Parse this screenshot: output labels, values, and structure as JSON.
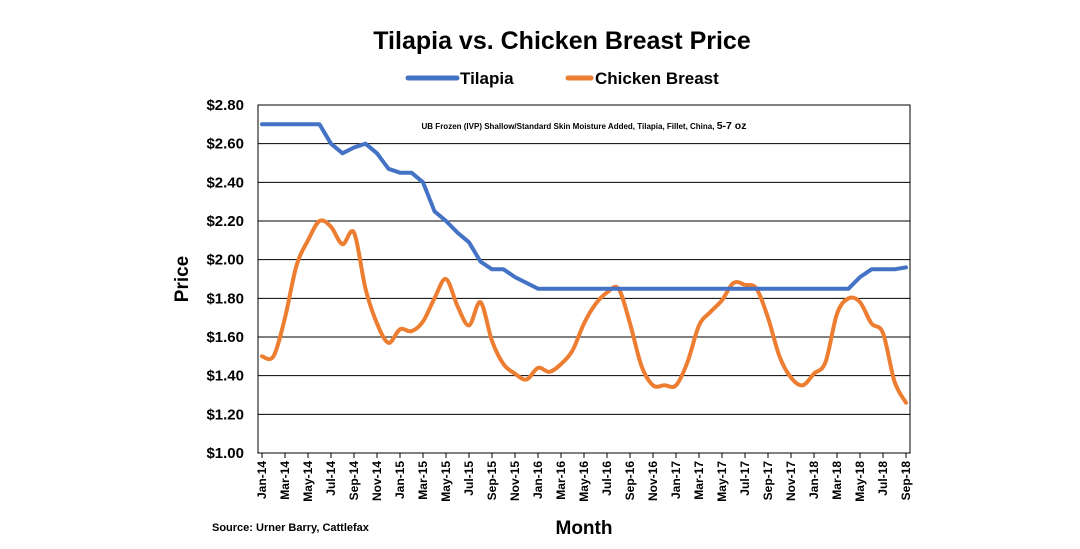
{
  "chart_data": {
    "type": "line",
    "title": "Tilapia vs. Chicken Breast Price",
    "xlabel": "Month",
    "ylabel": "Price",
    "ylim": [
      1.0,
      2.8
    ],
    "yticks": [
      "$1.00",
      "$1.20",
      "$1.40",
      "$1.60",
      "$1.80",
      "$2.00",
      "$2.20",
      "$2.40",
      "$2.60",
      "$2.80"
    ],
    "x_tick_labels": [
      "Jan-14",
      "Mar-14",
      "May-14",
      "Jul-14",
      "Sep-14",
      "Nov-14",
      "Jan-15",
      "Mar-15",
      "May-15",
      "Jul-15",
      "Sep-15",
      "Nov-15",
      "Jan-16",
      "Mar-16",
      "May-16",
      "Jul-16",
      "Sep-16",
      "Nov-16",
      "Jan-17",
      "Mar-17",
      "May-17",
      "Jul-17",
      "Sep-17",
      "Nov-17",
      "Jan-18",
      "Mar-18",
      "May-18",
      "Jul-18",
      "Sep-18"
    ],
    "x": [
      "Jan-14",
      "Feb-14",
      "Mar-14",
      "Apr-14",
      "May-14",
      "Jun-14",
      "Jul-14",
      "Aug-14",
      "Sep-14",
      "Oct-14",
      "Nov-14",
      "Dec-14",
      "Jan-15",
      "Feb-15",
      "Mar-15",
      "Apr-15",
      "May-15",
      "Jun-15",
      "Jul-15",
      "Aug-15",
      "Sep-15",
      "Oct-15",
      "Nov-15",
      "Dec-15",
      "Jan-16",
      "Feb-16",
      "Mar-16",
      "Apr-16",
      "May-16",
      "Jun-16",
      "Jul-16",
      "Aug-16",
      "Sep-16",
      "Oct-16",
      "Nov-16",
      "Dec-16",
      "Jan-17",
      "Feb-17",
      "Mar-17",
      "Apr-17",
      "May-17",
      "Jun-17",
      "Jul-17",
      "Aug-17",
      "Sep-17",
      "Oct-17",
      "Nov-17",
      "Dec-17",
      "Jan-18",
      "Feb-18",
      "Mar-18",
      "Apr-18",
      "May-18",
      "Jun-18",
      "Jul-18",
      "Aug-18",
      "Sep-18"
    ],
    "series": [
      {
        "name": "Tilapia",
        "color": "#4472C4",
        "values": [
          2.7,
          2.7,
          2.7,
          2.7,
          2.7,
          2.7,
          2.6,
          2.55,
          2.58,
          2.6,
          2.55,
          2.47,
          2.45,
          2.45,
          2.4,
          2.25,
          2.2,
          2.14,
          2.09,
          1.99,
          1.95,
          1.95,
          1.91,
          1.88,
          1.85,
          1.85,
          1.85,
          1.85,
          1.85,
          1.85,
          1.85,
          1.85,
          1.85,
          1.85,
          1.85,
          1.85,
          1.85,
          1.85,
          1.85,
          1.85,
          1.85,
          1.85,
          1.85,
          1.85,
          1.85,
          1.85,
          1.85,
          1.85,
          1.85,
          1.85,
          1.85,
          1.85,
          1.91,
          1.95,
          1.95,
          1.95,
          1.96
        ]
      },
      {
        "name": "Chicken Breast",
        "color": "#ED7D31",
        "values": [
          1.5,
          1.5,
          1.7,
          1.97,
          2.1,
          2.2,
          2.17,
          2.08,
          2.14,
          1.85,
          1.67,
          1.57,
          1.64,
          1.63,
          1.68,
          1.8,
          1.9,
          1.76,
          1.66,
          1.78,
          1.58,
          1.46,
          1.41,
          1.38,
          1.44,
          1.42,
          1.46,
          1.53,
          1.67,
          1.77,
          1.83,
          1.85,
          1.67,
          1.45,
          1.35,
          1.35,
          1.35,
          1.47,
          1.66,
          1.73,
          1.79,
          1.88,
          1.87,
          1.85,
          1.7,
          1.5,
          1.39,
          1.35,
          1.41,
          1.47,
          1.72,
          1.8,
          1.78,
          1.67,
          1.62,
          1.37,
          1.26
        ]
      }
    ],
    "annotation": {
      "main": "UB Frozen (IVP) Shallow/Standard Skin Moisture Added, Tilapia, Fillet, China,",
      "size": "5-7 oz"
    },
    "source": "Source: Urner Barry, Cattlefax",
    "legend_position": "top-center",
    "grid": true
  }
}
